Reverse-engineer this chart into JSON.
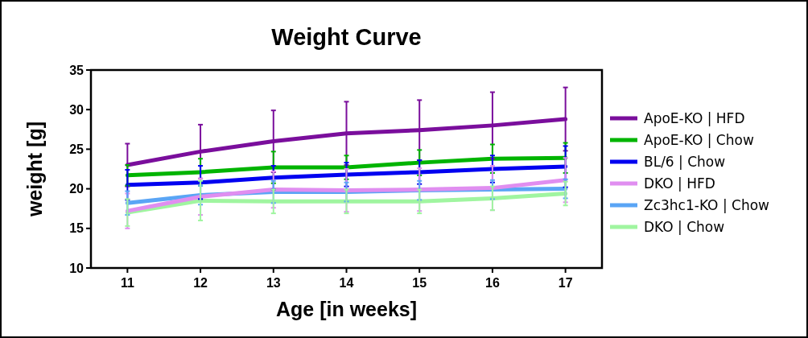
{
  "chart_data": {
    "type": "line",
    "title": "Weight Curve",
    "xlabel": "Age [in weeks]",
    "ylabel": "weight [g]",
    "x": [
      11,
      12,
      13,
      14,
      15,
      16,
      17
    ],
    "xlim": [
      10.5,
      17.5
    ],
    "xticks": [
      11,
      12,
      13,
      14,
      15,
      16,
      17
    ],
    "ylim": [
      10,
      35
    ],
    "yticks": [
      10,
      15,
      20,
      25,
      30,
      35
    ],
    "legend": "right",
    "grid": false,
    "marker": "none",
    "line_style": "solid",
    "series": [
      {
        "name": "ApoE-KO | HFD",
        "color": "#7a0e9c",
        "values": [
          23.0,
          24.7,
          26.0,
          27.0,
          27.4,
          28.0,
          28.8
        ],
        "errors": [
          2.7,
          3.4,
          3.9,
          4.0,
          3.8,
          4.2,
          4.0
        ]
      },
      {
        "name": "ApoE-KO | Chow",
        "color": "#00b400",
        "values": [
          21.7,
          22.1,
          22.7,
          22.7,
          23.3,
          23.8,
          23.9
        ],
        "errors": [
          1.3,
          1.7,
          2.0,
          1.5,
          1.6,
          1.8,
          1.9
        ]
      },
      {
        "name": "BL/6 | Chow",
        "color": "#0000f0",
        "values": [
          20.5,
          20.8,
          21.4,
          21.8,
          22.1,
          22.5,
          22.8
        ],
        "errors": [
          1.9,
          2.1,
          1.5,
          1.5,
          1.5,
          1.7,
          2.6
        ]
      },
      {
        "name": "DKO | HFD",
        "color": "#e08ef0",
        "values": [
          17.2,
          19.0,
          19.9,
          19.8,
          19.9,
          20.1,
          21.1
        ],
        "errors": [
          2.2,
          2.3,
          2.3,
          2.7,
          2.7,
          2.8,
          2.8
        ]
      },
      {
        "name": "Zc3hc1-KO | Chow",
        "color": "#5aa5f5",
        "values": [
          18.2,
          19.2,
          19.6,
          19.6,
          19.8,
          19.9,
          20.0
        ],
        "errors": [
          1.5,
          1.2,
          1.4,
          1.2,
          1.2,
          1.2,
          1.2
        ]
      },
      {
        "name": "DKO | Chow",
        "color": "#a0f5a0",
        "values": [
          17.0,
          18.5,
          18.4,
          18.4,
          18.4,
          18.8,
          19.4
        ],
        "errors": [
          1.7,
          2.5,
          1.5,
          1.5,
          1.5,
          1.5,
          1.5
        ]
      }
    ]
  }
}
